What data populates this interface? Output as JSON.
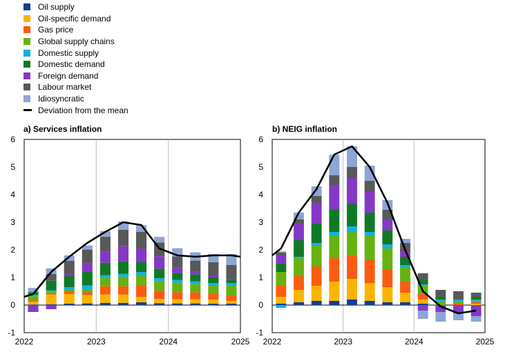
{
  "legend": [
    {
      "name": "Oil supply",
      "color": "#103d95"
    },
    {
      "name": "Oil-specific demand",
      "color": "#fbb400"
    },
    {
      "name": "Gas price",
      "color": "#fb5c12"
    },
    {
      "name": "Global supply chains",
      "color": "#67b211"
    },
    {
      "name": "Domestic supply",
      "color": "#17aee3"
    },
    {
      "name": "Domestic demand",
      "color": "#0f7a26"
    },
    {
      "name": "Foreign demand",
      "color": "#8439c6"
    },
    {
      "name": "Labour market",
      "color": "#595959"
    },
    {
      "name": "Idiosyncratic",
      "color": "#8ea5d6"
    },
    {
      "name": "Deviation from the mean",
      "color": "#000000",
      "kind": "line"
    }
  ],
  "chart_data": [
    {
      "type": "bar",
      "title": "a) Services inflation",
      "ylim": [
        -1,
        6
      ],
      "yticks": [
        -1,
        0,
        1,
        2,
        3,
        4,
        5,
        6
      ],
      "xlim": [
        2022,
        2025
      ],
      "xticks": [
        "2022",
        "2023",
        "2024",
        "2025"
      ],
      "x": [
        2022.125,
        2022.375,
        2022.625,
        2022.875,
        2023.125,
        2023.375,
        2023.625,
        2023.875,
        2024.125,
        2024.375,
        2024.625,
        2024.875
      ],
      "series": [
        {
          "name": "Oil supply",
          "values": [
            0.02,
            0.03,
            0.05,
            0.06,
            0.08,
            0.08,
            0.1,
            0.07,
            0.06,
            0.06,
            0.05,
            0.05
          ]
        },
        {
          "name": "Oil-specific demand",
          "values": [
            0.1,
            0.35,
            0.35,
            0.3,
            0.3,
            0.3,
            0.2,
            0.15,
            0.15,
            0.15,
            0.15,
            0.1
          ]
        },
        {
          "name": "Gas price",
          "values": [
            0.05,
            0.05,
            0.1,
            0.1,
            0.3,
            0.3,
            0.4,
            0.3,
            0.25,
            0.25,
            0.2,
            0.2
          ]
        },
        {
          "name": "Global supply chains",
          "values": [
            0.15,
            0.05,
            0.05,
            0.1,
            0.3,
            0.35,
            0.4,
            0.35,
            0.35,
            0.3,
            0.3,
            0.35
          ]
        },
        {
          "name": "Domestic supply",
          "values": [
            0.05,
            0.05,
            0.1,
            0.15,
            0.1,
            0.1,
            0.1,
            0.1,
            0.1,
            0.1,
            0.1,
            0.1
          ]
        },
        {
          "name": "Domestic demand",
          "values": [
            0.1,
            0.35,
            0.4,
            0.5,
            0.45,
            0.45,
            0.35,
            0.35,
            0.25,
            0.25,
            0.2,
            0.1
          ]
        },
        {
          "name": "Foreign demand",
          "values": [
            -0.25,
            -0.15,
            0.1,
            0.3,
            0.4,
            0.55,
            0.5,
            0.45,
            0.2,
            0.1,
            0.05,
            0.05
          ]
        },
        {
          "name": "Labour market",
          "values": [
            0.0,
            0.25,
            0.45,
            0.5,
            0.55,
            0.6,
            0.6,
            0.5,
            0.4,
            0.4,
            0.5,
            0.5
          ]
        },
        {
          "name": "Idiosyncratic",
          "values": [
            0.15,
            0.2,
            0.2,
            0.15,
            0.2,
            0.3,
            0.25,
            0.2,
            0.3,
            0.3,
            0.3,
            0.4
          ]
        }
      ],
      "line": {
        "name": "Deviation from the mean",
        "x": [
          2022.0,
          2022.125,
          2022.375,
          2022.625,
          2022.875,
          2023.125,
          2023.375,
          2023.625,
          2023.875,
          2024.125,
          2024.375,
          2024.625,
          2024.875,
          2025.0
        ],
        "values": [
          0.3,
          0.4,
          1.2,
          1.75,
          2.25,
          2.65,
          3.0,
          2.9,
          2.05,
          1.8,
          1.75,
          1.8,
          1.8,
          1.75
        ]
      }
    },
    {
      "type": "bar",
      "title": "b) NEIG inflation",
      "ylim": [
        -1,
        6
      ],
      "yticks": [
        -1,
        0,
        1,
        2,
        3,
        4,
        5,
        6
      ],
      "xlim": [
        2022,
        2025
      ],
      "xticks": [
        "2022",
        "2023",
        "2024",
        "2025"
      ],
      "x": [
        2022.125,
        2022.375,
        2022.625,
        2022.875,
        2023.125,
        2023.375,
        2023.625,
        2023.875,
        2024.125,
        2024.375,
        2024.625,
        2024.875
      ],
      "series": [
        {
          "name": "Oil supply",
          "values": [
            0.05,
            0.1,
            0.15,
            0.15,
            0.2,
            0.15,
            0.1,
            0.1,
            0.05,
            0.0,
            0.0,
            0.0
          ]
        },
        {
          "name": "Oil-specific demand",
          "values": [
            0.25,
            0.45,
            0.55,
            0.7,
            0.75,
            0.65,
            0.55,
            0.35,
            0.15,
            0.0,
            0.0,
            0.05
          ]
        },
        {
          "name": "Gas price",
          "values": [
            0.4,
            0.5,
            0.7,
            0.85,
            0.85,
            0.85,
            0.65,
            0.4,
            0.2,
            0.0,
            0.05,
            0.05
          ]
        },
        {
          "name": "Global supply chains",
          "values": [
            0.5,
            0.65,
            0.75,
            0.8,
            0.85,
            0.85,
            0.75,
            0.5,
            0.3,
            0.15,
            0.1,
            0.05
          ]
        },
        {
          "name": "Domestic supply",
          "values": [
            -0.1,
            0.05,
            0.1,
            0.15,
            0.2,
            0.15,
            0.15,
            0.1,
            0.05,
            0.05,
            0.05,
            0.05
          ]
        },
        {
          "name": "Domestic demand",
          "values": [
            0.3,
            0.6,
            0.7,
            0.8,
            0.8,
            0.7,
            0.5,
            0.3,
            0.15,
            0.1,
            0.0,
            0.1
          ]
        },
        {
          "name": "Foreign demand",
          "values": [
            0.3,
            0.6,
            0.75,
            0.9,
            0.95,
            0.75,
            0.4,
            0.2,
            -0.2,
            -0.25,
            -0.3,
            -0.4
          ]
        },
        {
          "name": "Labour market",
          "values": [
            0.1,
            0.15,
            0.25,
            0.35,
            0.4,
            0.4,
            0.35,
            0.3,
            0.25,
            0.25,
            0.3,
            0.15
          ]
        },
        {
          "name": "Idiosyncratic",
          "values": [
            0.05,
            0.25,
            0.35,
            0.75,
            0.75,
            0.55,
            0.35,
            0.15,
            -0.3,
            -0.35,
            -0.25,
            -0.2
          ]
        }
      ],
      "line": {
        "name": "Deviation from the mean",
        "x": [
          2022.0,
          2022.125,
          2022.375,
          2022.625,
          2022.875,
          2023.125,
          2023.375,
          2023.625,
          2023.875,
          2024.125,
          2024.375,
          2024.625,
          2024.875
        ],
        "values": [
          1.8,
          2.05,
          3.35,
          4.2,
          5.45,
          5.75,
          5.0,
          3.7,
          2.0,
          0.5,
          -0.05,
          -0.3,
          -0.2
        ]
      }
    }
  ]
}
